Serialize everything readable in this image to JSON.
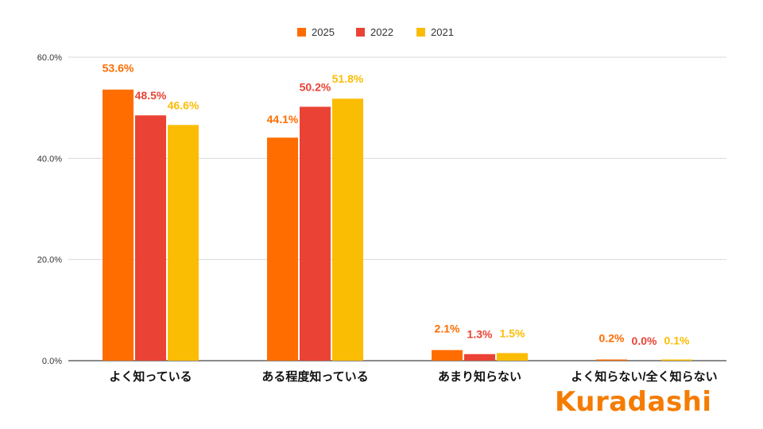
{
  "chart_data": {
    "type": "bar",
    "title": "",
    "xlabel": "",
    "ylabel": "",
    "ylim": [
      0,
      60
    ],
    "y_ticks": [
      "0.0%",
      "20.0%",
      "40.0%",
      "60.0%"
    ],
    "y_tick_values": [
      0,
      20,
      40,
      60
    ],
    "categories": [
      "よく知っている",
      "ある程度知っている",
      "あまり知らない",
      "よく知らない/全く知らない"
    ],
    "series": [
      {
        "name": "2025",
        "color": "#ff6d01",
        "values": [
          53.6,
          44.1,
          2.1,
          0.2
        ],
        "labels": [
          "53.6%",
          "44.1%",
          "2.1%",
          "0.2%"
        ]
      },
      {
        "name": "2022",
        "color": "#ea4335",
        "values": [
          48.5,
          50.2,
          1.3,
          0.0
        ],
        "labels": [
          "48.5%",
          "50.2%",
          "1.3%",
          "0.0%"
        ]
      },
      {
        "name": "2021",
        "color": "#fbbc04",
        "values": [
          46.6,
          51.8,
          1.5,
          0.1
        ],
        "labels": [
          "46.6%",
          "51.8%",
          "1.5%",
          "0.1%"
        ]
      }
    ],
    "legend_position": "top-center",
    "grid": true
  },
  "brand": {
    "logo_text": "Kuradashi",
    "color": "#f57c00"
  }
}
